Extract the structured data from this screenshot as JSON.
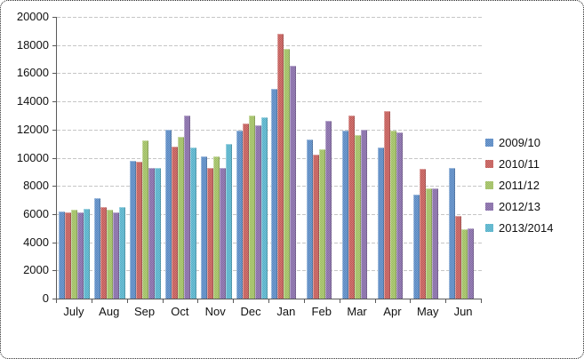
{
  "chart_data": {
    "type": "bar",
    "title": "",
    "xlabel": "",
    "ylabel": "",
    "categories": [
      "July",
      "Aug",
      "Sep",
      "Oct",
      "Nov",
      "Dec",
      "Jan",
      "Feb",
      "Mar",
      "Apr",
      "May",
      "Jun"
    ],
    "series": [
      {
        "name": "2009/10",
        "color": "#4F81BD",
        "color_light": "#7FA5D4",
        "values": [
          6200,
          7100,
          9800,
          12000,
          10100,
          11900,
          14900,
          11300,
          11900,
          10700,
          7400,
          9300
        ]
      },
      {
        "name": "2010/11",
        "color": "#C0504D",
        "color_light": "#D28380",
        "values": [
          6100,
          6500,
          9700,
          10800,
          9300,
          12400,
          18800,
          10200,
          13000,
          13300,
          9200,
          5900
        ]
      },
      {
        "name": "2011/12",
        "color": "#9BBB59",
        "color_light": "#B5CE85",
        "values": [
          6300,
          6300,
          11200,
          11500,
          10100,
          13000,
          17700,
          10600,
          11600,
          11900,
          7800,
          4900
        ]
      },
      {
        "name": "2012/13",
        "color": "#8064A2",
        "color_light": "#A08CBC",
        "values": [
          6100,
          6100,
          9300,
          13000,
          9300,
          12300,
          16500,
          12600,
          12000,
          11800,
          7800,
          5000
        ]
      },
      {
        "name": "2013/2014",
        "color": "#4BACC6",
        "color_light": "#7EC5D8",
        "values": [
          6400,
          6500,
          9300,
          10700,
          11000,
          12900,
          null,
          null,
          null,
          null,
          null,
          null
        ]
      }
    ],
    "ylim": [
      0,
      20000
    ],
    "ytick_step": 2000,
    "yticks": [
      "0",
      "2000",
      "4000",
      "6000",
      "8000",
      "10000",
      "12000",
      "14000",
      "16000",
      "18000",
      "20000"
    ],
    "grid": true,
    "legend_position": "right",
    "axis_color": "#595959",
    "gridline_color": "#C6C6C6"
  }
}
